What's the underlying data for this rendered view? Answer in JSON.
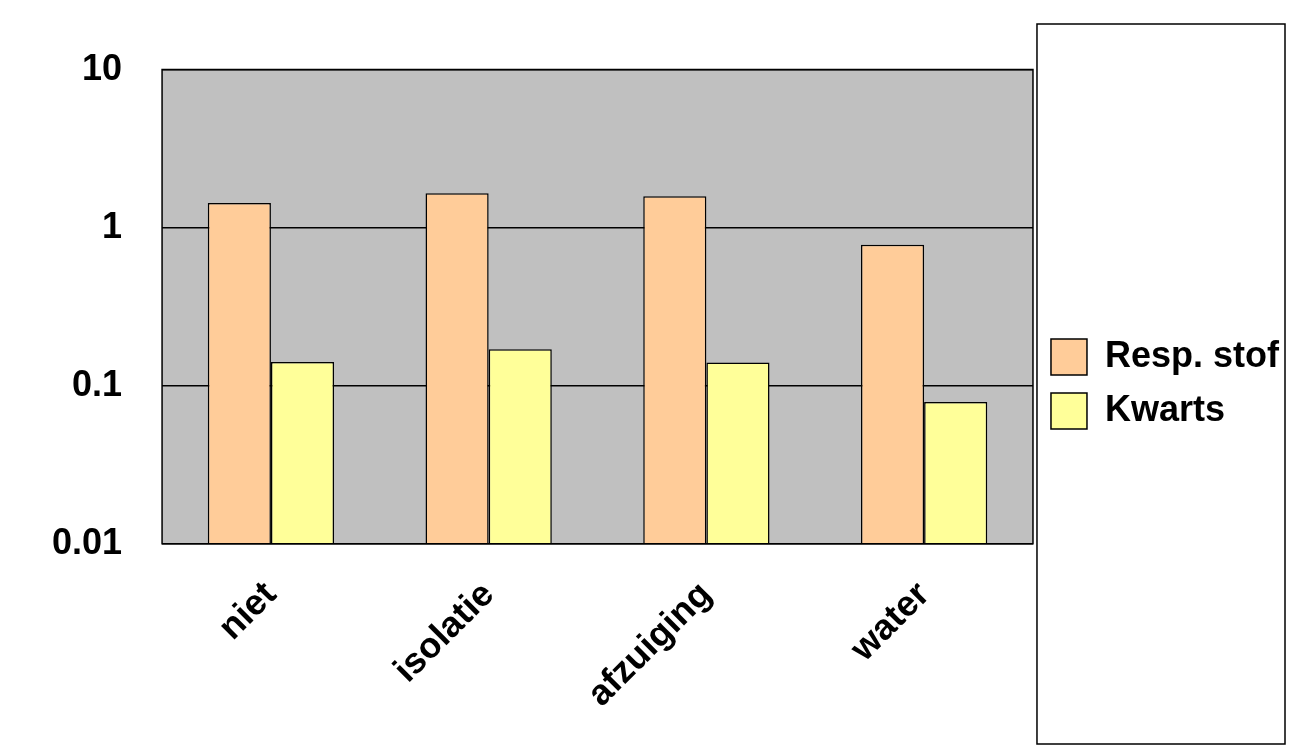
{
  "chart_data": {
    "type": "bar",
    "categories": [
      "niet",
      "isolatie",
      "afzuiging",
      "water"
    ],
    "series": [
      {
        "name": "Resp. stof",
        "color": "#ffcc99",
        "values": [
          1.43,
          1.65,
          1.58,
          0.78
        ]
      },
      {
        "name": "Kwarts",
        "color": "#ffff99",
        "values": [
          0.141,
          0.17,
          0.14,
          0.079
        ]
      }
    ],
    "log": true,
    "ylim": [
      0.01,
      10
    ],
    "yticks": [
      0.01,
      0.1,
      1,
      10
    ],
    "grid": "y",
    "legend": "right"
  }
}
